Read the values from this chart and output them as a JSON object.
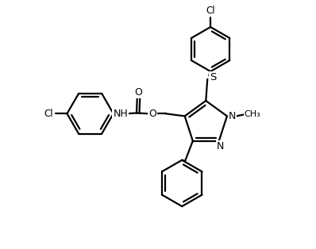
{
  "bg_color": "#ffffff",
  "line_color": "#000000",
  "lw": 1.6,
  "fig_width": 3.98,
  "fig_height": 3.14,
  "dpi": 100,
  "xlim": [
    0,
    10
  ],
  "ylim": [
    0,
    8
  ]
}
